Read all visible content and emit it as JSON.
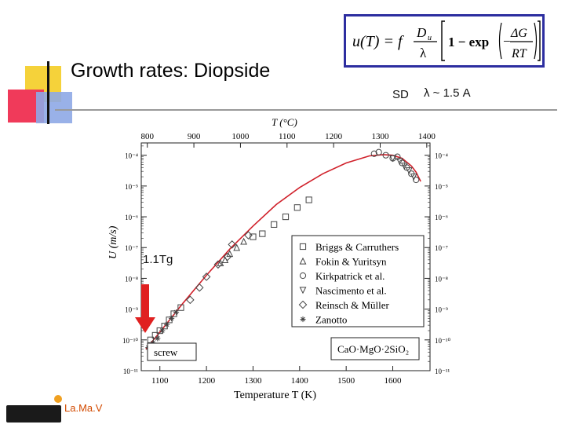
{
  "slide": {
    "title": "Growth rates: Diopside",
    "sd_label": "SD",
    "lambda_label": "λ ~ 1.5 A",
    "tg_label": "1.1Tg",
    "lab_name": "La.Ma.V"
  },
  "formula": {
    "lhs": "u(T) = f",
    "frac_num": "D",
    "frac_num_sub": "u",
    "frac_den": "λ",
    "bracket_text": "1 − exp",
    "inner_num": "ΔG",
    "inner_den": "RT"
  },
  "chart_data": {
    "type": "scatter",
    "top_axis_label": "T (°C)",
    "xlabel": "Temperature T (K)",
    "ylabel": "U (m/s)",
    "xlim": [
      1060,
      1680
    ],
    "ylim_log10": [
      -11,
      -3.6
    ],
    "x_ticks": [
      1100,
      1200,
      1300,
      1400,
      1500,
      1600
    ],
    "top_ticks_C": [
      800,
      900,
      1000,
      1100,
      1200,
      1300,
      1400
    ],
    "y_ticks_log10": [
      -4,
      -5,
      -6,
      -7,
      -8,
      -9,
      -10,
      -11
    ],
    "y_tick_labels": [
      "10⁻⁴",
      "10⁻⁵",
      "10⁻⁶",
      "10⁻⁷",
      "10⁻⁸",
      "10⁻⁹",
      "10⁻¹⁰",
      "10⁻¹¹"
    ],
    "legend_placement": "right",
    "composition_label": "CaO·MgO·2SiO₂",
    "mechanism_label": "screw",
    "colors": {
      "fit": "#d0202a",
      "points": "#444444",
      "arrow": "#e02020"
    },
    "legend": [
      {
        "name": "Briggs & Carruthers",
        "marker": "square"
      },
      {
        "name": "Fokin & Yuritsyn",
        "marker": "triangle-up"
      },
      {
        "name": "Kirkpatrick et al.",
        "marker": "circle-open"
      },
      {
        "name": "Nascimento et al.",
        "marker": "triangle-down"
      },
      {
        "name": "Reinsch & Müller",
        "marker": "diamond"
      },
      {
        "name": "Zanotto",
        "marker": "asterisk"
      }
    ],
    "fit_curve": {
      "x": [
        1070,
        1100,
        1150,
        1200,
        1250,
        1300,
        1350,
        1400,
        1450,
        1500,
        1550,
        1580,
        1600,
        1620,
        1640,
        1650,
        1660
      ],
      "y_log10": [
        -10.3,
        -9.75,
        -8.8,
        -7.9,
        -7.05,
        -6.3,
        -5.6,
        -5.05,
        -4.6,
        -4.25,
        -4.02,
        -3.98,
        -4.0,
        -4.1,
        -4.35,
        -4.55,
        -4.85
      ]
    },
    "series": [
      {
        "marker": "square",
        "x": [
          1300,
          1320,
          1345,
          1370,
          1395,
          1420
        ],
        "y_log10": [
          -6.65,
          -6.55,
          -6.25,
          -6.0,
          -5.7,
          -5.45
        ]
      },
      {
        "marker": "circle-open",
        "x": [
          1560,
          1570,
          1585,
          1600,
          1610,
          1620,
          1630,
          1640,
          1650
        ],
        "y_log10": [
          -3.95,
          -3.9,
          -4.0,
          -4.1,
          -4.05,
          -4.25,
          -4.4,
          -4.6,
          -4.8
        ]
      },
      {
        "marker": "diamond",
        "x": [
          1165,
          1185,
          1200,
          1225,
          1245,
          1255,
          1290
        ],
        "y_log10": [
          -8.7,
          -8.3,
          -7.95,
          -7.55,
          -7.3,
          -6.9,
          -6.6
        ]
      },
      {
        "marker": "triangle-up",
        "x": [
          1230,
          1240,
          1250,
          1265,
          1280
        ],
        "y_log10": [
          -7.5,
          -7.4,
          -7.2,
          -7.0,
          -6.8
        ]
      },
      {
        "marker": "triangle-down",
        "x": [
          1600,
          1615,
          1625,
          1635,
          1645
        ],
        "y_log10": [
          -4.1,
          -4.2,
          -4.35,
          -4.5,
          -4.7
        ]
      },
      {
        "marker": "asterisk",
        "x": [
          1075,
          1085,
          1095,
          1105,
          1115,
          1125,
          1135
        ],
        "y_log10": [
          -10.25,
          -10.1,
          -9.95,
          -9.7,
          -9.5,
          -9.3,
          -9.1
        ]
      },
      {
        "marker": "square",
        "x": [
          1080,
          1090,
          1100,
          1110,
          1120,
          1130,
          1145
        ],
        "y_log10": [
          -10.0,
          -9.85,
          -9.7,
          -9.55,
          -9.35,
          -9.15,
          -8.95
        ]
      }
    ]
  }
}
